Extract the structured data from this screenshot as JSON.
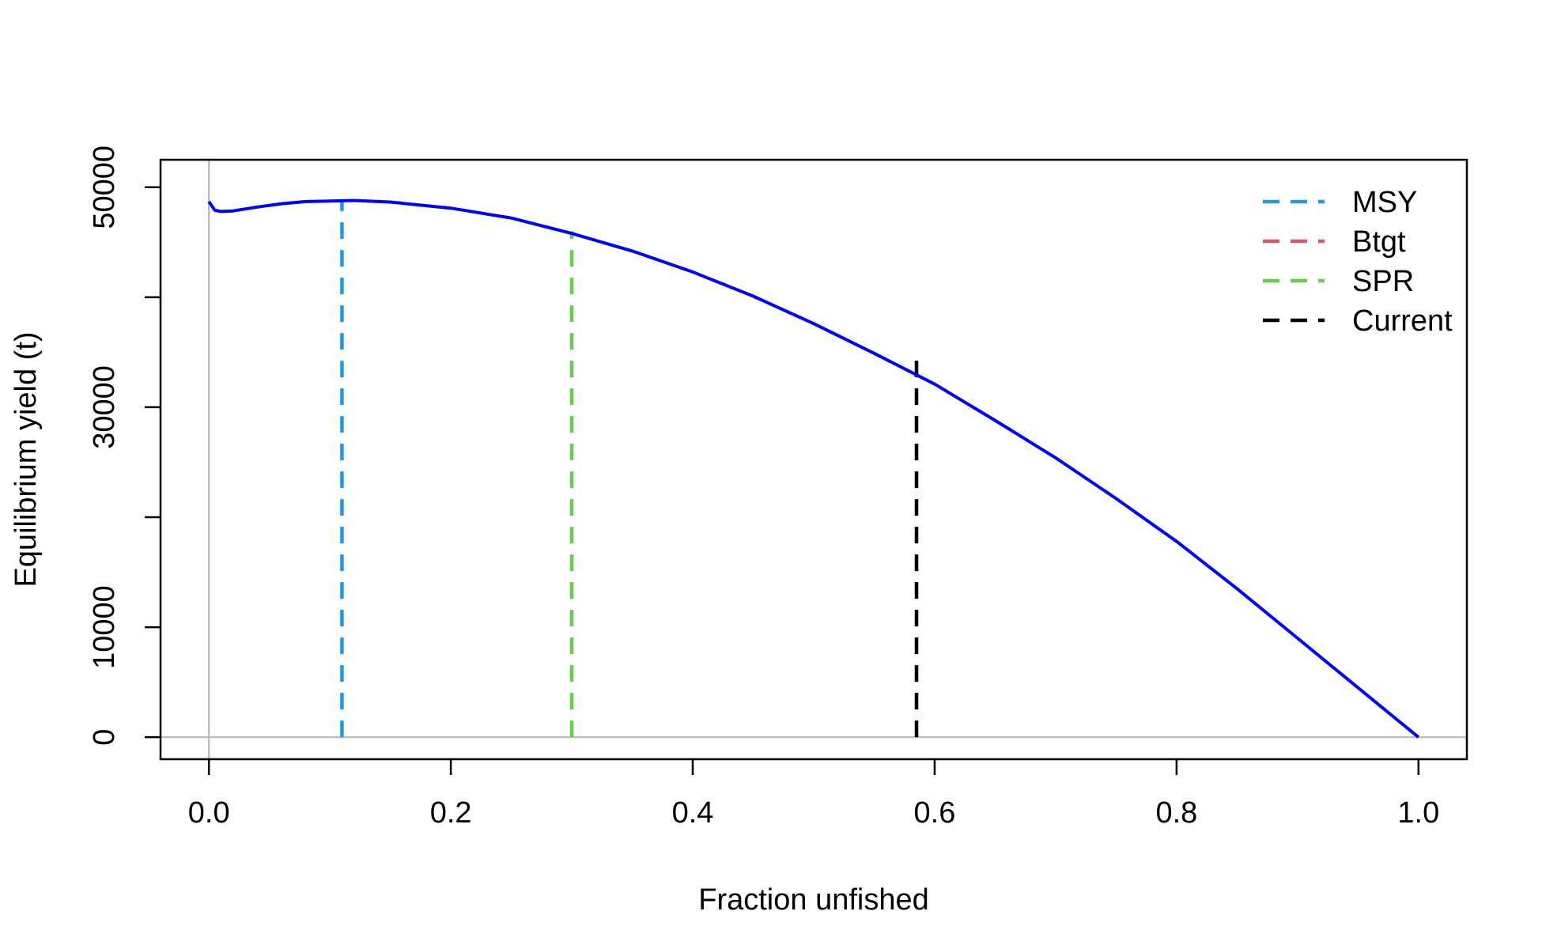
{
  "chart_data": {
    "type": "line",
    "xlabel": "Fraction unfished",
    "ylabel": "Equilibrium yield (t)",
    "xlim": [
      -0.04,
      1.04
    ],
    "ylim": [
      -2000,
      52500
    ],
    "x_ticks": [
      0.0,
      0.2,
      0.4,
      0.6,
      0.8,
      1.0
    ],
    "x_tick_labels": [
      "0.0",
      "0.2",
      "0.4",
      "0.6",
      "0.8",
      "1.0"
    ],
    "y_ticks": [
      0,
      10000,
      20000,
      30000,
      40000,
      50000
    ],
    "y_tick_labels": [
      "0",
      "10000",
      "",
      "30000",
      "",
      "50000"
    ],
    "grid": false,
    "reference_lines": {
      "x0_color": "#bebebe",
      "y0_color": "#bebebe"
    },
    "series": [
      {
        "color": "#0000ff",
        "x": [
          0.0,
          0.005,
          0.01,
          0.02,
          0.04,
          0.06,
          0.08,
          0.1,
          0.12,
          0.15,
          0.2,
          0.25,
          0.3,
          0.35,
          0.4,
          0.45,
          0.5,
          0.55,
          0.6,
          0.65,
          0.7,
          0.75,
          0.8,
          0.85,
          0.9,
          0.95,
          1.0
        ],
        "y": [
          48700,
          47900,
          47800,
          47850,
          48200,
          48500,
          48700,
          48750,
          48800,
          48650,
          48100,
          47200,
          45800,
          44200,
          42300,
          40100,
          37600,
          34900,
          32100,
          28800,
          25400,
          21700,
          17800,
          13500,
          9000,
          4500,
          0
        ]
      }
    ],
    "vertical_lines": [
      {
        "name": "MSY",
        "x": 0.11,
        "ymax": 48750,
        "color": "#2297e6"
      },
      {
        "name": "SPR",
        "x": 0.3,
        "ymax": 46000,
        "color": "#61d04f"
      },
      {
        "name": "Current",
        "x": 0.585,
        "ymax": 35000,
        "color": "#000000"
      }
    ],
    "legend": {
      "position": "top-right",
      "entries": [
        {
          "label": "MSY",
          "color": "#2297e6"
        },
        {
          "label": "Btgt",
          "color": "#df536b"
        },
        {
          "label": "SPR",
          "color": "#61d04f"
        },
        {
          "label": "Current",
          "color": "#000000"
        }
      ]
    }
  }
}
